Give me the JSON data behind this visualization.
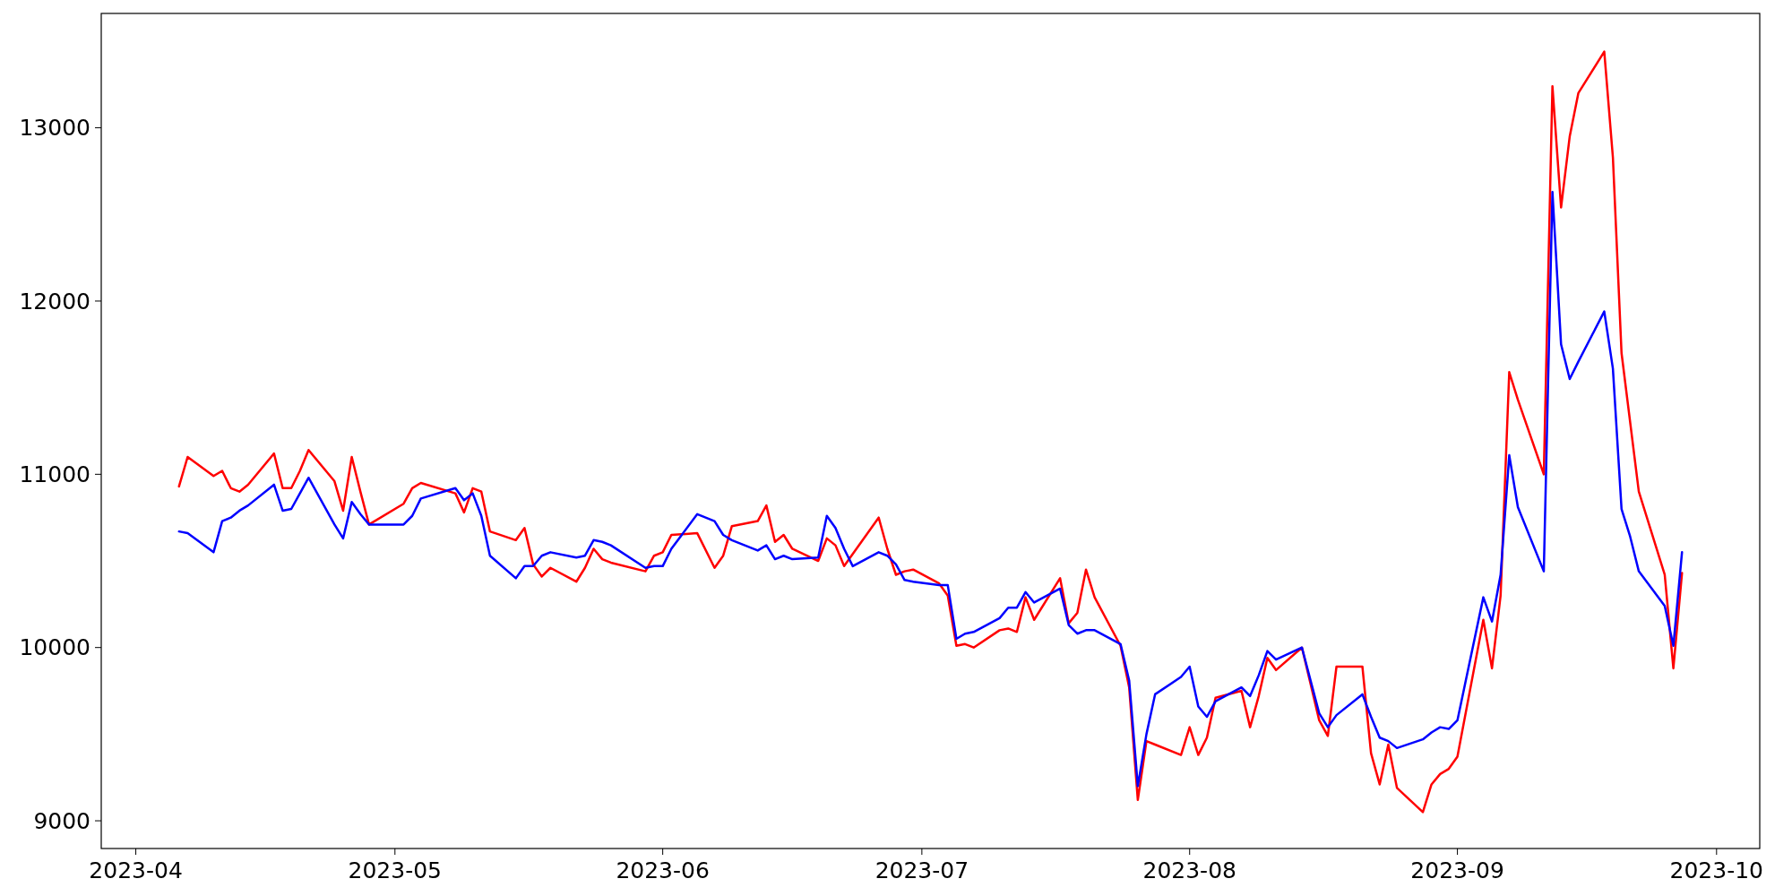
{
  "chart_data": {
    "type": "line",
    "x": [
      "2023-04-06",
      "2023-04-07",
      "2023-04-10",
      "2023-04-11",
      "2023-04-12",
      "2023-04-13",
      "2023-04-14",
      "2023-04-17",
      "2023-04-18",
      "2023-04-19",
      "2023-04-20",
      "2023-04-21",
      "2023-04-24",
      "2023-04-25",
      "2023-04-26",
      "2023-04-27",
      "2023-04-28",
      "2023-05-02",
      "2023-05-03",
      "2023-05-04",
      "2023-05-08",
      "2023-05-09",
      "2023-05-10",
      "2023-05-11",
      "2023-05-12",
      "2023-05-15",
      "2023-05-16",
      "2023-05-17",
      "2023-05-18",
      "2023-05-19",
      "2023-05-22",
      "2023-05-23",
      "2023-05-24",
      "2023-05-25",
      "2023-05-26",
      "2023-05-30",
      "2023-05-31",
      "2023-06-01",
      "2023-06-02",
      "2023-06-05",
      "2023-06-07",
      "2023-06-08",
      "2023-06-09",
      "2023-06-12",
      "2023-06-13",
      "2023-06-14",
      "2023-06-15",
      "2023-06-16",
      "2023-06-19",
      "2023-06-20",
      "2023-06-21",
      "2023-06-22",
      "2023-06-23",
      "2023-06-26",
      "2023-06-27",
      "2023-06-28",
      "2023-06-29",
      "2023-06-30",
      "2023-07-03",
      "2023-07-04",
      "2023-07-05",
      "2023-07-06",
      "2023-07-07",
      "2023-07-10",
      "2023-07-11",
      "2023-07-12",
      "2023-07-13",
      "2023-07-14",
      "2023-07-17",
      "2023-07-18",
      "2023-07-19",
      "2023-07-20",
      "2023-07-21",
      "2023-07-24",
      "2023-07-25",
      "2023-07-26",
      "2023-07-27",
      "2023-07-28",
      "2023-07-31",
      "2023-08-01",
      "2023-08-02",
      "2023-08-03",
      "2023-08-04",
      "2023-08-07",
      "2023-08-08",
      "2023-08-09",
      "2023-08-10",
      "2023-08-11",
      "2023-08-14",
      "2023-08-16",
      "2023-08-17",
      "2023-08-18",
      "2023-08-21",
      "2023-08-22",
      "2023-08-23",
      "2023-08-24",
      "2023-08-25",
      "2023-08-28",
      "2023-08-29",
      "2023-08-30",
      "2023-08-31",
      "2023-09-01",
      "2023-09-04",
      "2023-09-05",
      "2023-09-06",
      "2023-09-07",
      "2023-09-08",
      "2023-09-11",
      "2023-09-12",
      "2023-09-13",
      "2023-09-14",
      "2023-09-15",
      "2023-09-18",
      "2023-09-19",
      "2023-09-20",
      "2023-09-21",
      "2023-09-22",
      "2023-09-25",
      "2023-09-26",
      "2023-09-27"
    ],
    "series": [
      {
        "color": "#ff0000",
        "values": [
          10930,
          11100,
          10990,
          11020,
          10920,
          10900,
          10940,
          11120,
          10920,
          10920,
          11020,
          11140,
          10960,
          10790,
          11100,
          10900,
          10710,
          10830,
          10920,
          10950,
          10890,
          10780,
          10920,
          10900,
          10670,
          10620,
          10690,
          10480,
          10410,
          10460,
          10380,
          10460,
          10570,
          10510,
          10490,
          10440,
          10530,
          10550,
          10650,
          10660,
          10460,
          10530,
          10700,
          10730,
          10820,
          10610,
          10650,
          10570,
          10500,
          10630,
          10590,
          10470,
          10540,
          10750,
          10570,
          10420,
          10440,
          10450,
          10370,
          10300,
          10010,
          10020,
          10000,
          10100,
          10110,
          10090,
          10290,
          10160,
          10400,
          10140,
          10200,
          10450,
          10290,
          10010,
          9770,
          9120,
          9460,
          9440,
          9380,
          9540,
          9380,
          9480,
          9710,
          9750,
          9540,
          9720,
          9940,
          9870,
          10000,
          9580,
          9490,
          9890,
          9890,
          9390,
          9210,
          9440,
          9190,
          9050,
          9210,
          9270,
          9300,
          9370,
          10160,
          9880,
          10300,
          11590,
          11430,
          11000,
          13240,
          12540,
          12950,
          13200,
          13440,
          12830,
          11700,
          11300,
          10900,
          10420,
          9880,
          10430
        ]
      },
      {
        "color": "#0000ff",
        "values": [
          10670,
          10660,
          10550,
          10730,
          10750,
          10790,
          10820,
          10940,
          10790,
          10800,
          10890,
          10980,
          10710,
          10630,
          10840,
          10770,
          10710,
          10710,
          10760,
          10860,
          10920,
          10850,
          10890,
          10760,
          10530,
          10400,
          10470,
          10470,
          10530,
          10550,
          10520,
          10530,
          10620,
          10610,
          10590,
          10460,
          10470,
          10470,
          10570,
          10770,
          10730,
          10650,
          10620,
          10560,
          10590,
          10510,
          10530,
          10510,
          10520,
          10760,
          10690,
          10570,
          10470,
          10550,
          10530,
          10480,
          10390,
          10380,
          10360,
          10360,
          10050,
          10080,
          10090,
          10170,
          10230,
          10230,
          10320,
          10260,
          10340,
          10130,
          10080,
          10100,
          10100,
          10020,
          9810,
          9200,
          9500,
          9730,
          9830,
          9890,
          9660,
          9600,
          9690,
          9770,
          9720,
          9840,
          9980,
          9930,
          10000,
          9620,
          9540,
          9610,
          9730,
          9600,
          9480,
          9460,
          9420,
          9470,
          9510,
          9540,
          9530,
          9580,
          10290,
          10150,
          10420,
          11110,
          10810,
          10440,
          12630,
          11750,
          11550,
          11650,
          11940,
          11610,
          10800,
          10640,
          10440,
          10240,
          10010,
          10550
        ]
      }
    ],
    "xlim": [
      "2023-03-28",
      "2023-10-06"
    ],
    "xticks": [
      "2023-04",
      "2023-05",
      "2023-06",
      "2023-07",
      "2023-08",
      "2023-09",
      "2023-10"
    ],
    "ylim": [
      8840,
      13660
    ],
    "yticks": [
      9000,
      10000,
      11000,
      12000,
      13000
    ],
    "grid": false,
    "line_style": "solid",
    "marker": "none"
  }
}
